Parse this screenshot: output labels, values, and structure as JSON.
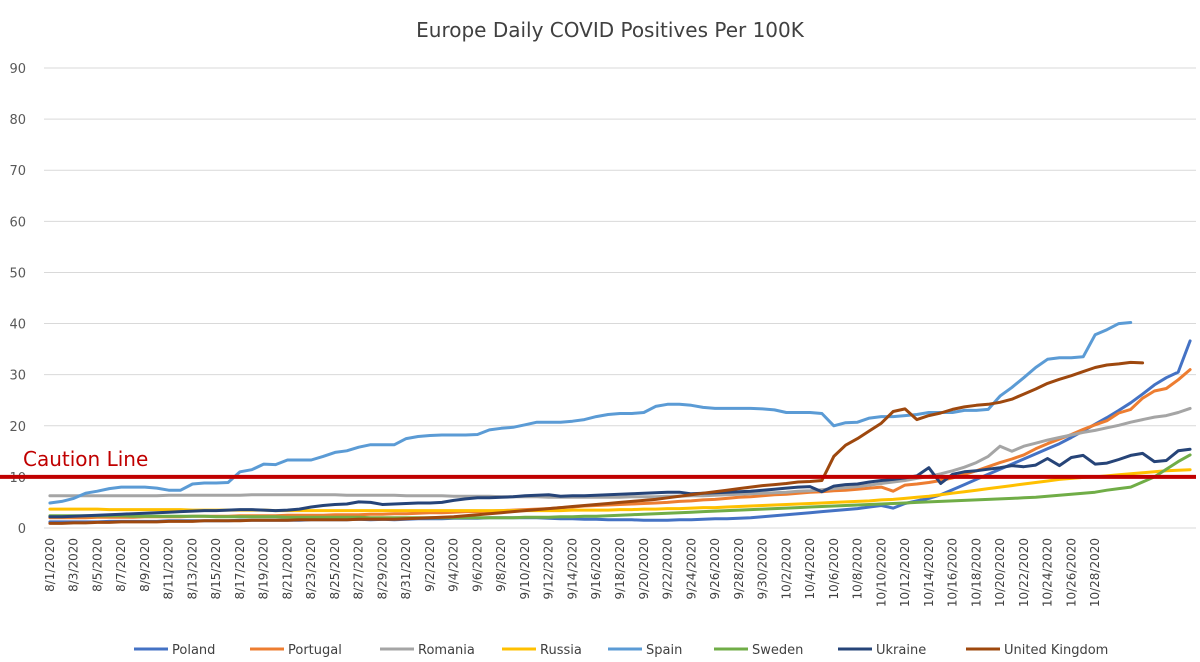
{
  "chart_data": {
    "type": "line",
    "title": "Europe Daily COVID Positives Per 100K",
    "xlabel": "",
    "ylabel": "",
    "ylim": [
      0,
      90
    ],
    "yticks": [
      0,
      10,
      20,
      30,
      40,
      50,
      60,
      70,
      80,
      90
    ],
    "grid": true,
    "legend_position": "bottom",
    "x_tick_labels": [
      "8/1/2020",
      "8/3/2020",
      "8/5/2020",
      "8/7/2020",
      "8/9/2020",
      "8/11/2020",
      "8/13/2020",
      "8/15/2020",
      "8/17/2020",
      "8/19/2020",
      "8/21/2020",
      "8/23/2020",
      "8/25/2020",
      "8/27/2020",
      "8/29/2020",
      "8/31/2020",
      "9/2/2020",
      "9/4/2020",
      "9/6/2020",
      "9/8/2020",
      "9/10/2020",
      "9/12/2020",
      "9/14/2020",
      "9/16/2020",
      "9/18/2020",
      "9/20/2020",
      "9/22/2020",
      "9/24/2020",
      "9/26/2020",
      "9/28/2020",
      "9/30/2020",
      "10/2/2020",
      "10/4/2020",
      "10/6/2020",
      "10/8/2020",
      "10/10/2020",
      "10/12/2020",
      "10/14/2020",
      "10/16/2020",
      "10/18/2020",
      "10/20/2020",
      "10/22/2020",
      "10/24/2020",
      "10/26/2020",
      "10/28/2020"
    ],
    "annotation": {
      "label": "Caution Line",
      "value": 10,
      "color": "#c00000"
    },
    "series": [
      {
        "name": "Poland",
        "color": "#4472c4",
        "values": [
          1.2,
          1.2,
          1.2,
          1.2,
          1.2,
          1.3,
          1.3,
          1.3,
          1.3,
          1.3,
          1.4,
          1.4,
          1.4,
          1.4,
          1.4,
          1.4,
          1.5,
          1.5,
          1.5,
          1.5,
          1.5,
          1.5,
          1.6,
          1.6,
          1.6,
          1.6,
          1.7,
          1.6,
          1.7,
          1.6,
          1.7,
          1.8,
          1.8,
          1.8,
          1.9,
          1.9,
          1.9,
          2,
          2,
          2,
          2,
          2,
          1.9,
          1.8,
          1.8,
          1.7,
          1.7,
          1.6,
          1.6,
          1.6,
          1.5,
          1.5,
          1.5,
          1.6,
          1.6,
          1.7,
          1.8,
          1.8,
          1.9,
          2,
          2.2,
          2.4,
          2.6,
          2.8,
          3,
          3.2,
          3.4,
          3.6,
          3.8,
          4.1,
          4.4,
          3.9,
          4.8,
          5.3,
          5.8,
          6.5,
          7.5,
          8.5,
          9.5,
          10.5,
          11.5,
          12.5,
          13.5,
          14.5,
          15.5,
          16.5,
          17.7,
          19,
          20.3,
          21.6,
          23,
          24.5,
          26.2,
          28,
          29.4,
          30.5,
          36.6
        ]
      },
      {
        "name": "Portugal",
        "color": "#ed7d31",
        "values": [
          2,
          2,
          2,
          2,
          2.1,
          2.1,
          2.1,
          2.1,
          2.2,
          2.2,
          2.2,
          2.2,
          2.3,
          2.3,
          2.3,
          2.3,
          2.4,
          2.4,
          2.4,
          2.4,
          2.5,
          2.5,
          2.5,
          2.5,
          2.6,
          2.6,
          2.6,
          2.7,
          2.7,
          2.8,
          2.8,
          2.9,
          3,
          3,
          3.1,
          3.2,
          3.2,
          3.3,
          3.4,
          3.5,
          3.6,
          3.7,
          3.8,
          4,
          4.1,
          4.3,
          4.4,
          4.5,
          4.6,
          4.7,
          4.8,
          4.9,
          5,
          5.2,
          5.3,
          5.5,
          5.6,
          5.8,
          6,
          6.1,
          6.3,
          6.5,
          6.6,
          6.8,
          7,
          7.1,
          7.3,
          7.4,
          7.6,
          7.8,
          8,
          7.2,
          8.4,
          8.6,
          8.9,
          9.3,
          9.8,
          10.5,
          11.2,
          12,
          12.8,
          13.5,
          14.3,
          15.5,
          16.5,
          17.4,
          18.3,
          19.3,
          20.2,
          21,
          22.5,
          23.2,
          25.4,
          26.8,
          27.3,
          29,
          31
        ]
      },
      {
        "name": "Romania",
        "color": "#a5a5a5",
        "values": [
          6.3,
          6.3,
          6.3,
          6.3,
          6.3,
          6.3,
          6.3,
          6.3,
          6.3,
          6.3,
          6.4,
          6.4,
          6.4,
          6.4,
          6.4,
          6.4,
          6.4,
          6.5,
          6.5,
          6.5,
          6.5,
          6.5,
          6.5,
          6.5,
          6.5,
          6.4,
          6.4,
          6.4,
          6.4,
          6.4,
          6.3,
          6.3,
          6.3,
          6.3,
          6.2,
          6.2,
          6.2,
          6.2,
          6.1,
          6.1,
          6.1,
          6.1,
          6,
          6,
          6,
          6,
          6,
          6,
          6,
          6.1,
          6.1,
          6.1,
          6.2,
          6.2,
          6.3,
          6.3,
          6.4,
          6.5,
          6.6,
          6.7,
          6.8,
          6.9,
          7,
          7.2,
          7.3,
          7.5,
          7.7,
          7.9,
          8.1,
          8.4,
          8.7,
          9,
          9.3,
          9.7,
          10.1,
          10.6,
          11.2,
          11.9,
          12.8,
          14,
          16,
          15,
          16,
          16.6,
          17.2,
          17.7,
          18.2,
          18.7,
          19.1,
          19.6,
          20.1,
          20.7,
          21.2,
          21.7,
          22,
          22.6,
          23.4
        ]
      },
      {
        "name": "Russia",
        "color": "#ffc000",
        "values": [
          3.7,
          3.7,
          3.7,
          3.7,
          3.7,
          3.6,
          3.6,
          3.6,
          3.6,
          3.6,
          3.6,
          3.6,
          3.5,
          3.5,
          3.5,
          3.5,
          3.5,
          3.5,
          3.5,
          3.4,
          3.4,
          3.4,
          3.4,
          3.4,
          3.4,
          3.4,
          3.4,
          3.4,
          3.4,
          3.4,
          3.4,
          3.4,
          3.4,
          3.4,
          3.4,
          3.4,
          3.4,
          3.4,
          3.4,
          3.4,
          3.4,
          3.4,
          3.4,
          3.4,
          3.5,
          3.5,
          3.5,
          3.5,
          3.6,
          3.6,
          3.7,
          3.7,
          3.8,
          3.8,
          3.9,
          4,
          4,
          4.1,
          4.2,
          4.3,
          4.4,
          4.5,
          4.6,
          4.7,
          4.8,
          4.9,
          5,
          5.1,
          5.2,
          5.3,
          5.5,
          5.6,
          5.8,
          6,
          6.2,
          6.5,
          6.8,
          7.1,
          7.4,
          7.7,
          8,
          8.3,
          8.6,
          8.9,
          9.2,
          9.5,
          9.7,
          9.9,
          10,
          10.2,
          10.4,
          10.6,
          10.8,
          11,
          11.2,
          11.3,
          11.4
        ]
      },
      {
        "name": "Spain",
        "color": "#5b9bd5",
        "values": [
          4.9,
          5.2,
          5.8,
          6.8,
          7.2,
          7.7,
          8,
          8,
          8,
          7.8,
          7.4,
          7.4,
          8.6,
          8.8,
          8.8,
          8.9,
          11,
          11.4,
          12.5,
          12.4,
          13.3,
          13.3,
          13.3,
          14,
          14.8,
          15.1,
          15.8,
          16.3,
          16.3,
          16.3,
          17.5,
          17.9,
          18.1,
          18.2,
          18.2,
          18.2,
          18.3,
          19.2,
          19.5,
          19.7,
          20.2,
          20.7,
          20.7,
          20.7,
          20.9,
          21.2,
          21.8,
          22.2,
          22.4,
          22.4,
          22.6,
          23.8,
          24.2,
          24.2,
          24,
          23.6,
          23.4,
          23.4,
          23.4,
          23.4,
          23.3,
          23.1,
          22.6,
          22.6,
          22.6,
          22.4,
          20,
          20.6,
          20.7,
          21.5,
          21.8,
          21.8,
          22,
          22.2,
          22.6,
          22.6,
          22.6,
          23,
          23,
          23.2,
          25.8,
          27.5,
          29.4,
          31.4,
          33,
          33.3,
          33.3,
          33.5,
          37.8,
          38.8,
          40,
          40.2
        ]
      },
      {
        "name": "Sweden",
        "color": "#70ad47",
        "values": [
          2.4,
          2.4,
          2.4,
          2.4,
          2.4,
          2.4,
          2.4,
          2.3,
          2.3,
          2.3,
          2.3,
          2.3,
          2.3,
          2.3,
          2.2,
          2.2,
          2.2,
          2.2,
          2.2,
          2.2,
          2.1,
          2.1,
          2.1,
          2.1,
          2.1,
          2.1,
          2.1,
          2,
          2,
          2,
          2,
          2,
          2,
          2,
          2,
          2,
          2,
          2,
          2,
          2,
          2.1,
          2.1,
          2.1,
          2.2,
          2.2,
          2.3,
          2.3,
          2.4,
          2.5,
          2.6,
          2.7,
          2.8,
          2.9,
          3,
          3.1,
          3.2,
          3.3,
          3.4,
          3.5,
          3.6,
          3.7,
          3.8,
          3.9,
          4,
          4.1,
          4.2,
          4.3,
          4.4,
          4.5,
          4.6,
          4.7,
          4.8,
          4.9,
          5,
          5.1,
          5.2,
          5.3,
          5.4,
          5.5,
          5.6,
          5.7,
          5.8,
          5.9,
          6,
          6.2,
          6.4,
          6.6,
          6.8,
          7,
          7.4,
          7.7,
          8,
          9,
          10,
          11.5,
          13,
          14.3
        ]
      },
      {
        "name": "Ukraine",
        "color": "#264478",
        "values": [
          2.2,
          2.2,
          2.3,
          2.4,
          2.5,
          2.6,
          2.7,
          2.8,
          2.9,
          3,
          3.1,
          3.2,
          3.3,
          3.4,
          3.4,
          3.5,
          3.6,
          3.6,
          3.5,
          3.4,
          3.5,
          3.7,
          4.1,
          4.4,
          4.6,
          4.7,
          5.1,
          5,
          4.6,
          4.7,
          4.8,
          4.9,
          4.9,
          5,
          5.4,
          5.7,
          5.9,
          5.9,
          6,
          6.1,
          6.3,
          6.4,
          6.5,
          6.2,
          6.3,
          6.3,
          6.4,
          6.5,
          6.6,
          6.7,
          6.8,
          6.9,
          7,
          7,
          6.7,
          6.8,
          6.9,
          7,
          7.1,
          7.2,
          7.4,
          7.6,
          7.8,
          8,
          8.1,
          7.1,
          8.2,
          8.5,
          8.6,
          9,
          9.3,
          9.5,
          9.8,
          10.2,
          11.8,
          8.7,
          10.5,
          11,
          11.2,
          11.5,
          11.8,
          12.2,
          12,
          12.3,
          13.6,
          12.2,
          13.8,
          14.2,
          12.5,
          12.7,
          13.4,
          14.2,
          14.6,
          13,
          13.2,
          15.1,
          15.4
        ]
      },
      {
        "name": "United Kingdom",
        "color": "#9e480e",
        "values": [
          0.9,
          0.9,
          1,
          1,
          1.1,
          1.1,
          1.2,
          1.2,
          1.2,
          1.2,
          1.3,
          1.3,
          1.3,
          1.4,
          1.4,
          1.4,
          1.4,
          1.5,
          1.5,
          1.5,
          1.5,
          1.6,
          1.6,
          1.6,
          1.6,
          1.6,
          1.7,
          1.7,
          1.7,
          1.7,
          1.8,
          1.9,
          2,
          2.1,
          2.2,
          2.4,
          2.6,
          2.8,
          3,
          3.2,
          3.4,
          3.6,
          3.8,
          4,
          4.2,
          4.4,
          4.6,
          4.8,
          5,
          5.2,
          5.4,
          5.6,
          5.9,
          6.2,
          6.5,
          6.8,
          7.1,
          7.4,
          7.7,
          8,
          8.3,
          8.5,
          8.7,
          9,
          9.1,
          9.3,
          14,
          16.2,
          17.5,
          19,
          20.5,
          22.8,
          23.3,
          21.2,
          22,
          22.5,
          23.2,
          23.7,
          24,
          24.2,
          24.6,
          25.2,
          26.2,
          27.2,
          28.3,
          29.1,
          29.8,
          30.6,
          31.4,
          31.9,
          32.1,
          32.4,
          32.3
        ]
      }
    ]
  }
}
